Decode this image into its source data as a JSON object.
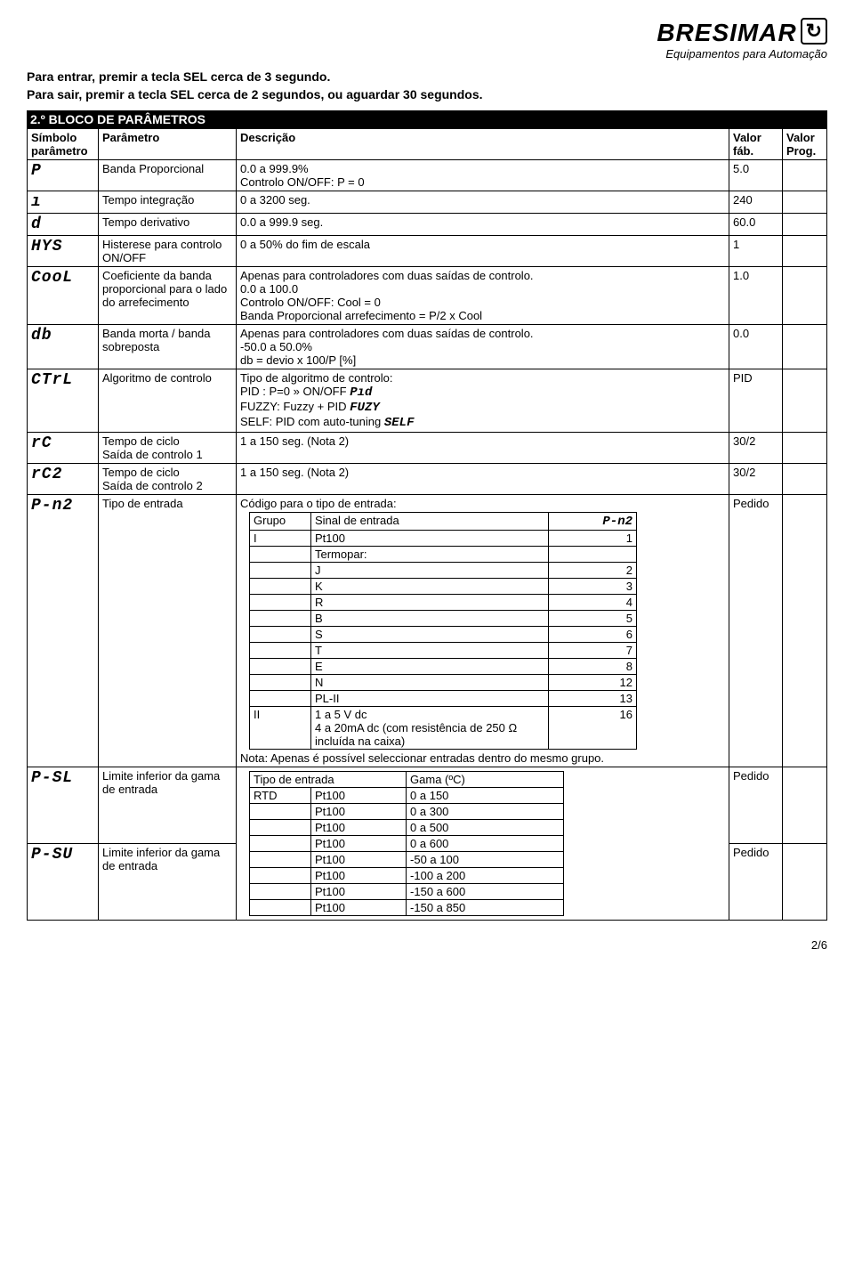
{
  "logo": {
    "name": "BRESIMAR",
    "tagline": "Equipamentos para Automação"
  },
  "intro1": "Para entrar, premir a tecla SEL cerca de 3 segundo.",
  "intro2": "Para sair, premir a tecla SEL cerca de 2 segundos, ou aguardar 30 segundos.",
  "block_title": "2.º BLOCO DE PARÂMETROS",
  "headers": {
    "symbol": "Símbolo parâmetro",
    "param": "Parâmetro",
    "desc": "Descrição",
    "fab": "Valor fáb.",
    "prog": "Valor Prog."
  },
  "rows": {
    "p": {
      "sym": "P",
      "par": "Banda Proporcional",
      "desc": "0.0 a 999.9%\nControlo ON/OFF: P = 0",
      "fab": "5.0"
    },
    "i": {
      "sym": "ı",
      "par": "Tempo integração",
      "desc": "0 a 3200 seg.",
      "fab": "240"
    },
    "d": {
      "sym": "d",
      "par": "Tempo derivativo",
      "desc": "0.0 a 999.9 seg.",
      "fab": "60.0"
    },
    "hys": {
      "sym": "HYS",
      "par": "Histerese para controlo ON/OFF",
      "desc": "0 a 50% do fim de escala",
      "fab": "1"
    },
    "cool": {
      "sym": "CooL",
      "par": "Coeficiente da banda proporcional para o lado do arrefecimento",
      "desc": "Apenas para controladores com duas saídas de controlo.\n0.0 a 100.0\nControlo ON/OFF: Cool = 0\nBanda Proporcional arrefecimento = P/2 x Cool",
      "fab": "1.0"
    },
    "db": {
      "sym": "db",
      "par": "Banda morta / banda sobreposta",
      "desc": "Apenas para controladores com duas saídas de controlo.\n-50.0 a 50.0%\ndb = devio x 100/P [%]",
      "fab": "0.0"
    },
    "ctrl": {
      "sym": "CTrL",
      "par": "Algoritmo de controlo",
      "desc_intro": "Tipo de algoritmo de controlo:",
      "pid_lbl": "PID : P=0 » ON/OFF",
      "pid_sym": "Pıd",
      "fuzzy_lbl": "FUZZY: Fuzzy + PID",
      "fuzzy_sym": "FUZY",
      "self_lbl": "SELF: PID com auto-tuning",
      "self_sym": "SELF",
      "fab": "PID"
    },
    "rc": {
      "sym": "rC",
      "par": "Tempo de ciclo\nSaída de controlo 1",
      "desc": "1 a 150 seg.  (Nota 2)",
      "fab": "30/2"
    },
    "rc2": {
      "sym": "rC2",
      "par": "Tempo de ciclo\nSaída de controlo 2",
      "desc": "1 a 150 seg.  (Nota 2)",
      "fab": "30/2"
    },
    "pn2": {
      "sym": "P-n2",
      "par": "Tipo de entrada",
      "desc_intro": "Código para o tipo de entrada:",
      "fab": "Pedido",
      "inner_hdr": {
        "grupo": "Grupo",
        "sinal": "Sinal de entrada",
        "code_sym": "P-n2"
      },
      "rows": [
        {
          "g": "I",
          "s": "Pt100",
          "c": "1"
        },
        {
          "g": "",
          "s": "Termopar:",
          "c": ""
        },
        {
          "g": "",
          "s": "J",
          "c": "2"
        },
        {
          "g": "",
          "s": "K",
          "c": "3"
        },
        {
          "g": "",
          "s": "R",
          "c": "4"
        },
        {
          "g": "",
          "s": "B",
          "c": "5"
        },
        {
          "g": "",
          "s": "S",
          "c": "6"
        },
        {
          "g": "",
          "s": "T",
          "c": "7"
        },
        {
          "g": "",
          "s": "E",
          "c": "8"
        },
        {
          "g": "",
          "s": "N",
          "c": "12"
        },
        {
          "g": "",
          "s": "PL-II",
          "c": "13"
        },
        {
          "g": "II",
          "s": "1 a 5 V dc\n4 a 20mA dc (com resistência de 250 Ω incluída na caixa)",
          "c": "16"
        }
      ],
      "note": "Nota: Apenas é possível seleccionar entradas dentro do mesmo grupo."
    },
    "psl": {
      "sym": "P-SL",
      "par": "Limite inferior da gama de entrada",
      "fab": "Pedido"
    },
    "psu": {
      "sym": "P-SU",
      "par": "Limite inferior da gama de entrada",
      "fab": "Pedido"
    },
    "range_hdr": {
      "tipo": "Tipo de entrada",
      "gama": "Gama (ºC)"
    },
    "ranges": [
      {
        "t": "RTD",
        "s": "Pt100",
        "g": "0 a 150"
      },
      {
        "t": "",
        "s": "Pt100",
        "g": "0 a 300"
      },
      {
        "t": "",
        "s": "Pt100",
        "g": "0 a 500"
      },
      {
        "t": "",
        "s": "Pt100",
        "g": "0 a 600"
      },
      {
        "t": "",
        "s": "Pt100",
        "g": "-50 a 100"
      },
      {
        "t": "",
        "s": "Pt100",
        "g": "-100 a 200"
      },
      {
        "t": "",
        "s": "Pt100",
        "g": "-150 a 600"
      },
      {
        "t": "",
        "s": "Pt100",
        "g": "-150 a 850"
      }
    ]
  },
  "pagenum": "2/6"
}
